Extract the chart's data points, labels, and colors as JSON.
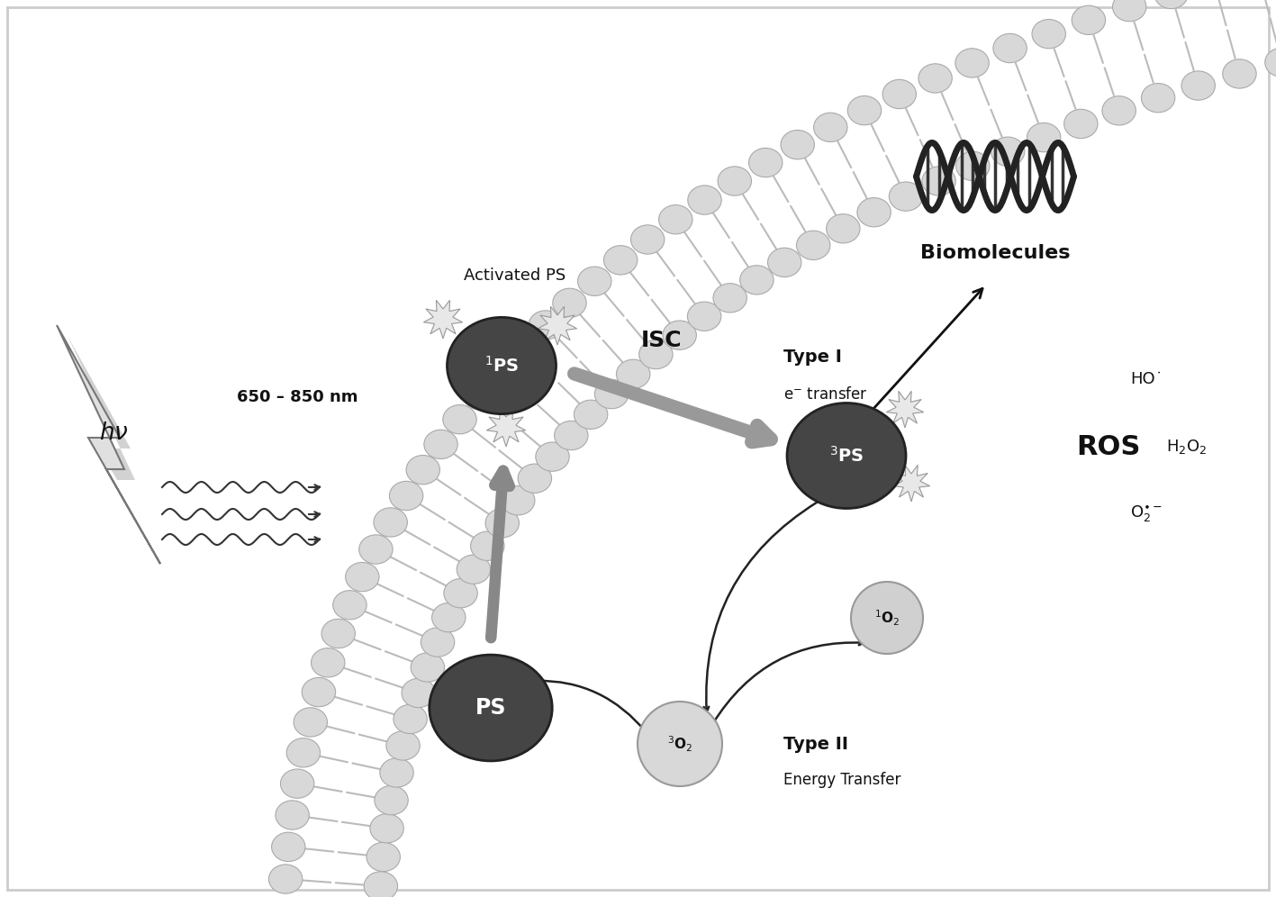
{
  "bg_color": "#ffffff",
  "mem_head_fc": "#d8d8d8",
  "mem_head_ec": "#aaaaaa",
  "mem_tail_color": "#bbbbbb",
  "dark_circle_fc": "#454545",
  "dark_circle_ec": "#222222",
  "burst_fc": "#e8e8e8",
  "burst_ec": "#999999",
  "o2_light_fc": "#d0d0d0",
  "o2_light_ec": "#999999",
  "isc_arrow_color": "#999999",
  "up_arrow_color": "#888888",
  "thin_arrow_color": "#222222",
  "type1_arrow_color": "#111111",
  "text_color": "#111111",
  "border_color": "#cccccc",
  "bolt_fc": "#e0e0e0",
  "bolt_ec": "#777777",
  "bolt_shadow": "#c0c0c0",
  "label_hv": "$h\\nu$",
  "label_wavelength": "650 – 850 nm",
  "label_activated_ps": "Activated PS",
  "label_isc": "ISC",
  "label_type1": "Type I",
  "label_e_transfer": "e$^{-}$ transfer",
  "label_type2": "Type II",
  "label_energy_transfer": "Energy Transfer",
  "label_ros": "ROS",
  "label_ho": "HO˙",
  "label_h2o2": "H$_2$O$_2$",
  "label_o2minus": "O$_2^{\\bullet-}$",
  "label_ps": "PS",
  "label_1ps": "$^1$PS",
  "label_3ps": "$^3$PS",
  "label_1o2": "$^1$O$_2$",
  "label_3o2": "$^3$O$_2$",
  "label_biomolecules": "Biomolecules"
}
